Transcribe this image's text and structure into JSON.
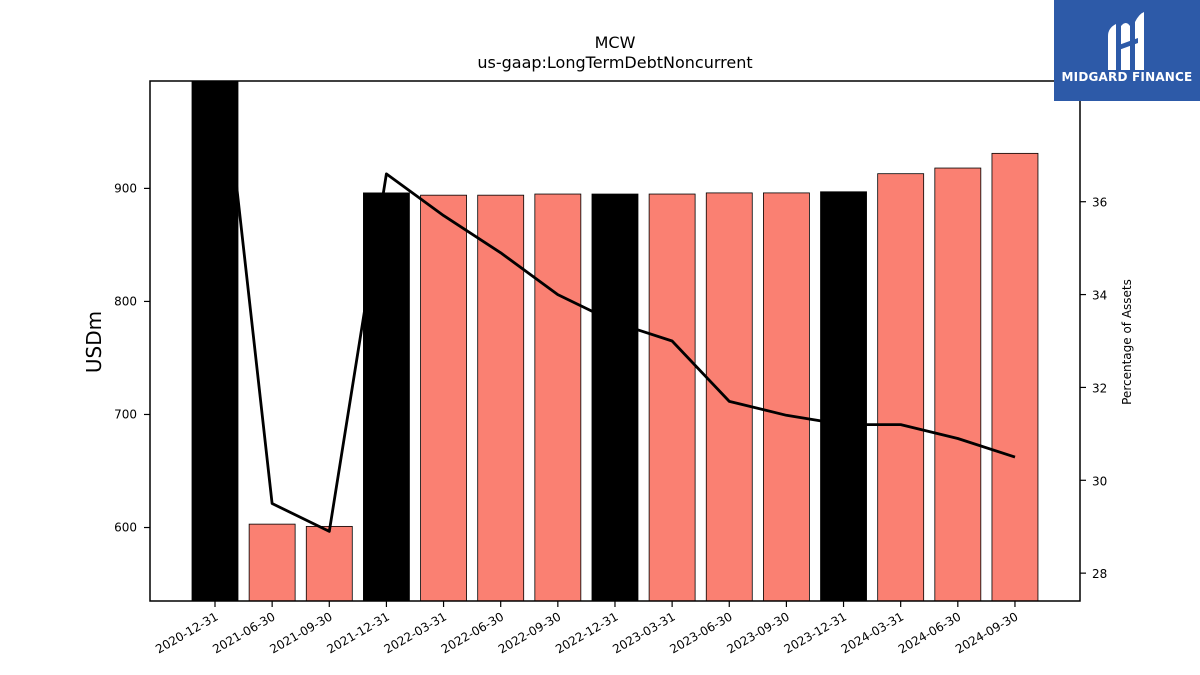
{
  "chart_data": {
    "type": "bar",
    "title": "MCW",
    "subtitle": "us-gaap:LongTermDebtNoncurrent",
    "ylabel": "USDm",
    "y2label": "Percentage of Assets",
    "categories": [
      "2020-12-31",
      "2021-06-30",
      "2021-09-30",
      "2021-12-31",
      "2022-03-31",
      "2022-06-30",
      "2022-09-30",
      "2022-12-31",
      "2023-03-31",
      "2023-06-30",
      "2023-09-30",
      "2023-12-31",
      "2024-03-31",
      "2024-06-30",
      "2024-09-30"
    ],
    "series": [
      {
        "values": [
          1000,
          603,
          601,
          896,
          894,
          894,
          895,
          895,
          895,
          896,
          896,
          897,
          913,
          918,
          931
        ],
        "colors": [
          "#000000",
          "#fa8072",
          "#fa8072",
          "#000000",
          "#fa8072",
          "#fa8072",
          "#fa8072",
          "#000000",
          "#fa8072",
          "#fa8072",
          "#fa8072",
          "#000000",
          "#fa8072",
          "#fa8072",
          "#fa8072"
        ]
      },
      {
        "type": "line",
        "axis": "right",
        "color": "#000000",
        "values": [
          40.5,
          29.5,
          28.9,
          36.6,
          35.7,
          34.9,
          34.0,
          33.4,
          33.0,
          31.7,
          31.4,
          31.2,
          31.2,
          30.9,
          30.5
        ]
      }
    ],
    "ylim": [
      535,
      995
    ],
    "yticks": [
      600,
      700,
      800,
      900
    ],
    "y2lim": [
      27.4,
      38.6
    ],
    "y2ticks": [
      28,
      30,
      32,
      34,
      36
    ],
    "grid": false
  },
  "logo": {
    "text": "MIDGARD FINANCE",
    "color": "#2d5aa8"
  }
}
